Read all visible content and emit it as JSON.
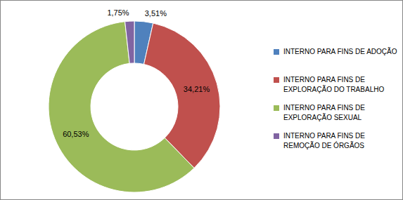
{
  "chart_data": {
    "type": "pie",
    "categories": [
      "INTERNO PARA FINS DE ADOÇÃO",
      "INTERNO PARA FINS DE EXPLORAÇÃO DO TRABALHO",
      "INTERNO PARA FINS DE EXPLORAÇÃO SEXUAL",
      "INTERNO PARA FINS DE REMOÇÃO DE ÓRGÃOS"
    ],
    "values": [
      3.51,
      34.21,
      60.53,
      1.75
    ],
    "value_labels": [
      "3,51%",
      "34,21%",
      "60,53%",
      "1,75%"
    ],
    "colors": [
      "#4f81bd",
      "#c0504d",
      "#9bbb59",
      "#8064a2"
    ],
    "data_labels": true,
    "legend": "right"
  }
}
